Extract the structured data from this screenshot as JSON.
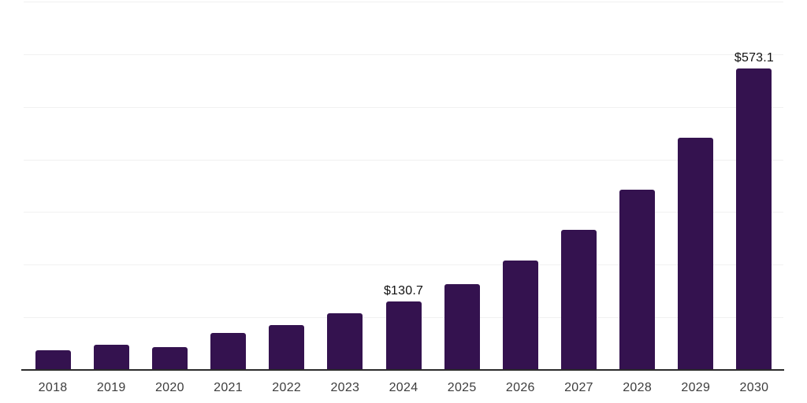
{
  "chart_data": {
    "type": "bar",
    "title": "",
    "xlabel": "",
    "ylabel": "",
    "categories": [
      "2018",
      "2019",
      "2020",
      "2021",
      "2022",
      "2023",
      "2024",
      "2025",
      "2026",
      "2027",
      "2028",
      "2029",
      "2030"
    ],
    "values": [
      38.0,
      47.5,
      43.7,
      70.4,
      85.6,
      107.5,
      130.7,
      163.5,
      207.7,
      266.0,
      343.0,
      441.0,
      573.1
    ],
    "bar_labels": [
      "",
      "",
      "",
      "",
      "",
      "",
      "$130.7",
      "",
      "",
      "",
      "",
      "",
      "$573.1"
    ],
    "ylim": [
      0,
      700
    ],
    "gridline_step": 100,
    "grid": "horizontal",
    "legend": "none"
  },
  "style": {
    "bar_color": "#34124f",
    "gridline_color": "#f1f1f1",
    "axis_color": "#2b2b2b",
    "value_label_color": "#111111",
    "tick_label_color": "#3d3d3d",
    "background_color": "#ffffff"
  }
}
